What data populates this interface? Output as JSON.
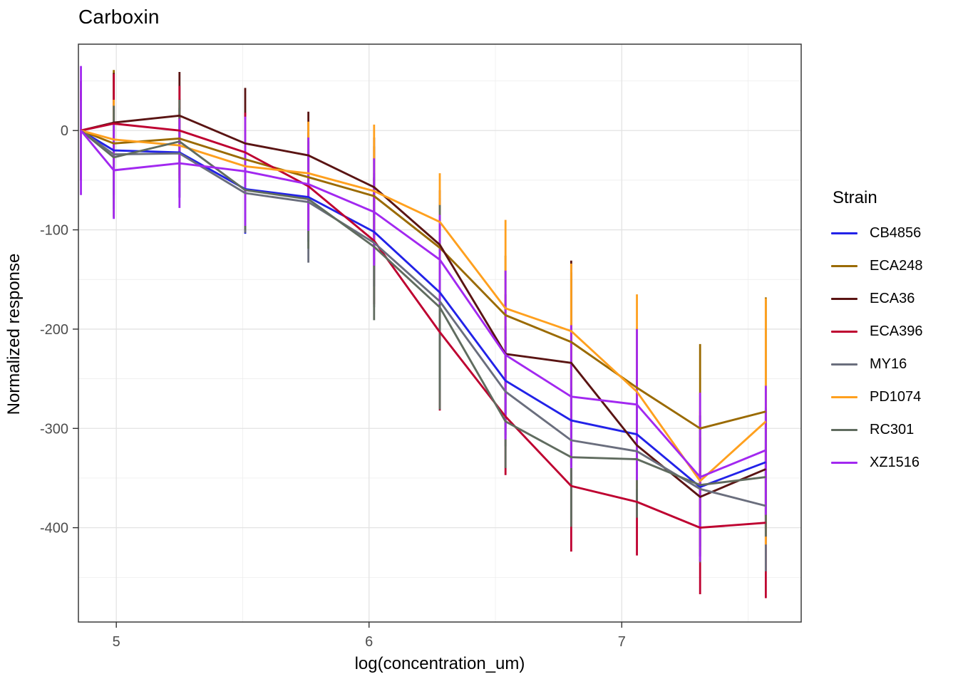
{
  "figure": {
    "title": "Carboxin"
  },
  "axes": {
    "x_title": "log(concentration_um)",
    "y_title": "Normalized response"
  },
  "legend": {
    "title": "Strain"
  },
  "chart_data": {
    "type": "line",
    "title": "Carboxin",
    "xlabel": "log(concentration_um)",
    "ylabel": "Normalized response",
    "legend_title": "Strain",
    "legend_position": "right",
    "grid": "on",
    "error_bars": "vertical",
    "xlim": [
      4.85,
      7.71
    ],
    "ylim": [
      -495,
      87
    ],
    "x_ticks": [
      5,
      6,
      7
    ],
    "x_minor_gridlines": [
      5.5,
      6.5,
      7.5
    ],
    "y_ticks": [
      0,
      -100,
      -200,
      -300,
      -400
    ],
    "y_minor_gridlines": [
      50,
      -50,
      -150,
      -250,
      -350,
      -450
    ],
    "x": [
      4.86,
      4.99,
      5.25,
      5.51,
      5.76,
      6.02,
      6.28,
      6.54,
      6.8,
      7.06,
      7.31,
      7.57
    ],
    "series": [
      {
        "name": "CB4856",
        "color": "#2222E8",
        "values": [
          0,
          -20,
          -22,
          -59,
          -67,
          -102,
          -163,
          -252,
          -292,
          -306,
          -359,
          -334
        ],
        "errors": [
          25,
          45,
          45,
          45,
          45,
          55,
          60,
          55,
          60,
          50,
          60,
          55
        ]
      },
      {
        "name": "ECA248",
        "color": "#9A6A00",
        "values": [
          0,
          -13,
          -8,
          -29,
          -47,
          -66,
          -118,
          -186,
          -213,
          -259,
          -300,
          -283
        ],
        "errors": [
          40,
          74,
          40,
          40,
          45,
          50,
          50,
          60,
          70,
          60,
          85,
          115
        ]
      },
      {
        "name": "ECA36",
        "color": "#5A1413",
        "values": [
          0,
          8,
          15,
          -13,
          -25,
          -57,
          -115,
          -225,
          -234,
          -317,
          -369,
          -341
        ],
        "errors": [
          50,
          50,
          44,
          56,
          44,
          50,
          55,
          60,
          103,
          60,
          60,
          60
        ]
      },
      {
        "name": "ECA396",
        "color": "#BE0030",
        "values": [
          0,
          7,
          0,
          -22,
          -56,
          -111,
          -203,
          -288,
          -358,
          -374,
          -400,
          -395
        ],
        "errors": [
          40,
          50,
          45,
          40,
          45,
          64,
          79,
          59,
          66,
          54,
          67,
          76
        ]
      },
      {
        "name": "MY16",
        "color": "#6A6E7D",
        "values": [
          0,
          -24,
          -23,
          -63,
          -72,
          -113,
          -172,
          -263,
          -312,
          -323,
          -361,
          -378
        ],
        "errors": [
          25,
          45,
          45,
          40,
          61,
          65,
          90,
          55,
          80,
          55,
          74,
          66
        ]
      },
      {
        "name": "PD1074",
        "color": "#FFA01E",
        "values": [
          0,
          -9,
          -15,
          -36,
          -43,
          -61,
          -92,
          -179,
          -202,
          -263,
          -353,
          -293
        ],
        "errors": [
          30,
          40,
          35,
          47,
          52,
          67,
          49,
          89,
          68,
          98,
          70,
          124
        ]
      },
      {
        "name": "RC301",
        "color": "#606C5F",
        "values": [
          0,
          -27,
          -11,
          -60,
          -69,
          -117,
          -178,
          -293,
          -329,
          -331,
          -357,
          -349
        ],
        "errors": [
          30,
          52,
          42,
          40,
          50,
          74,
          103,
          47,
          70,
          59,
          70,
          60
        ]
      },
      {
        "name": "XZ1516",
        "color": "#A228F0",
        "values": [
          0,
          -40,
          -33,
          -41,
          -54,
          -82,
          -130,
          -226,
          -268,
          -276,
          -349,
          -322
        ],
        "errors": [
          65,
          49,
          45,
          55,
          47,
          54,
          45,
          85,
          72,
          76,
          85,
          65
        ]
      }
    ]
  }
}
